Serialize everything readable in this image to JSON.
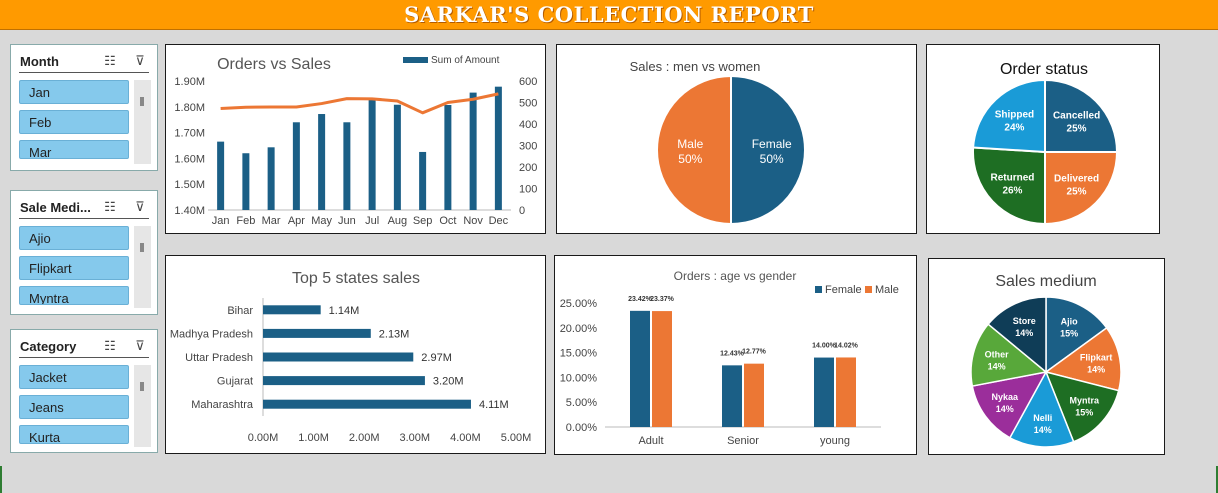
{
  "report_title": "SARKAR'S COLLECTION REPORT",
  "slicers": [
    {
      "title": "Month",
      "items": [
        "Jan",
        "Feb",
        "Mar"
      ]
    },
    {
      "title": "Sale Medi...",
      "items": [
        "Ajio",
        "Flipkart",
        "Myntra"
      ]
    },
    {
      "title": "Category",
      "items": [
        "Jacket",
        "Jeans",
        "Kurta"
      ]
    }
  ],
  "icons": {
    "multi_select": "checklist-icon",
    "clear_filter": "filter-clear-icon"
  },
  "colors": {
    "blue": "#1b5f86",
    "orange": "#ec7734",
    "banner": "#ff9a00"
  },
  "chart_data": [
    {
      "id": "orders_vs_sales",
      "type": "bar",
      "title": "Orders vs Sales",
      "categories": [
        "Jan",
        "Feb",
        "Mar",
        "Apr",
        "May",
        "Jun",
        "Jul",
        "Aug",
        "Sep",
        "Oct",
        "Nov",
        "Dec"
      ],
      "series": [
        {
          "name": "Sum of Amount",
          "type": "bar",
          "axis": "left",
          "values": [
            1.665,
            1.62,
            1.643,
            1.74,
            1.772,
            1.74,
            1.833,
            1.808,
            1.625,
            1.807,
            1.855,
            1.878
          ]
        },
        {
          "name": "",
          "type": "line",
          "axis": "right",
          "values": [
            472,
            478,
            479,
            479,
            495,
            518,
            517,
            507,
            452,
            500,
            515,
            540
          ]
        }
      ],
      "ylim_left": [
        1.4,
        1.9
      ],
      "yticks_left": [
        "1.40M",
        "1.50M",
        "1.60M",
        "1.70M",
        "1.80M",
        "1.90M"
      ],
      "ylim_right": [
        0,
        600
      ],
      "yticks_right": [
        "0",
        "100",
        "200",
        "300",
        "400",
        "500",
        "600"
      ],
      "legend": "top-right"
    },
    {
      "id": "sales_men_women",
      "type": "pie",
      "title": "Sales : men vs women",
      "slices": [
        {
          "label": "Female",
          "value": 50,
          "pct": "50%",
          "color": "#1b5f86"
        },
        {
          "label": "Male",
          "value": 50,
          "pct": "50%",
          "color": "#ec7734"
        }
      ]
    },
    {
      "id": "order_status",
      "type": "pie",
      "title": "Order status",
      "slices": [
        {
          "label": "Cancelled",
          "value": 25,
          "pct": "25%",
          "color": "#1b5f86"
        },
        {
          "label": "Delivered",
          "value": 25,
          "pct": "25%",
          "color": "#ec7734"
        },
        {
          "label": "Returned",
          "value": 26,
          "pct": "26%",
          "color": "#1e6e23"
        },
        {
          "label": "Shipped",
          "value": 24,
          "pct": "24%",
          "color": "#1a9bd7"
        }
      ]
    },
    {
      "id": "top5_states",
      "type": "bar",
      "orientation": "horizontal",
      "title": "Top 5 states sales",
      "categories": [
        "Bihar",
        "Madhya Pradesh",
        "Uttar Pradesh",
        "Gujarat",
        "Maharashtra"
      ],
      "values": [
        1.14,
        2.13,
        2.97,
        3.2,
        4.11
      ],
      "data_labels": [
        "1.14M",
        "2.13M",
        "2.97M",
        "3.20M",
        "4.11M"
      ],
      "xlim": [
        0,
        5
      ],
      "xticks": [
        "0.00M",
        "1.00M",
        "2.00M",
        "3.00M",
        "4.00M",
        "5.00M"
      ]
    },
    {
      "id": "orders_age_gender",
      "type": "bar",
      "title": "Orders : age vs gender",
      "categories": [
        "Adult",
        "Senior",
        "young"
      ],
      "series": [
        {
          "name": "Female",
          "values": [
            23.42,
            12.43,
            14.0
          ],
          "labels": [
            "23.42%",
            "12.43%",
            "14.00%"
          ],
          "color": "#1b5f86"
        },
        {
          "name": "Male",
          "values": [
            23.37,
            12.77,
            14.02
          ],
          "labels": [
            "23.37%",
            "12.77%",
            "14.02%"
          ],
          "color": "#ec7734"
        }
      ],
      "ylim": [
        0,
        25
      ],
      "yticks": [
        "0.00%",
        "5.00%",
        "10.00%",
        "15.00%",
        "20.00%",
        "25.00%"
      ],
      "legend": "top-right"
    },
    {
      "id": "sales_medium",
      "type": "pie",
      "title": "Sales medium",
      "slices": [
        {
          "label": "Ajio",
          "value": 15,
          "pct": "15%",
          "color": "#1b5f86"
        },
        {
          "label": "Flipkart",
          "value": 14,
          "pct": "14%",
          "color": "#ec7734"
        },
        {
          "label": "Myntra",
          "value": 15,
          "pct": "15%",
          "color": "#1e6e23"
        },
        {
          "label": "Nelli",
          "value": 14,
          "pct": "14%",
          "color": "#1a9bd7"
        },
        {
          "label": "Nykaa",
          "value": 14,
          "pct": "14%",
          "color": "#9b2e9b"
        },
        {
          "label": "Other",
          "value": 14,
          "pct": "14%",
          "color": "#58a83a"
        },
        {
          "label": "Store",
          "value": 14,
          "pct": "14%",
          "color": "#0f3d57"
        }
      ]
    }
  ]
}
